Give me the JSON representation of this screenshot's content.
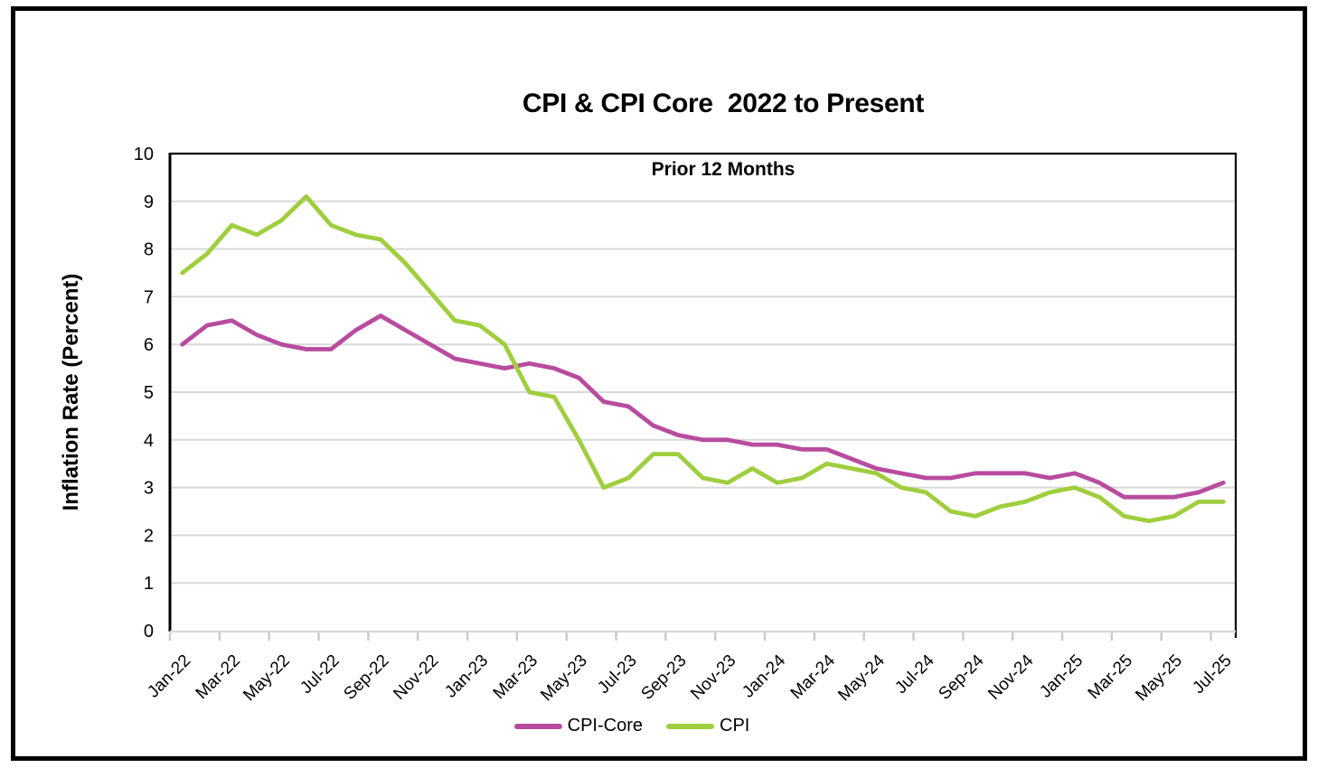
{
  "chart_data": {
    "type": "line",
    "title": "CPI & CPI Core  2022 to Present",
    "subtitle": "Prior 12 Months",
    "ylabel": "Inflation Rate (Percent)",
    "xlabel": "",
    "ylim": [
      0,
      10
    ],
    "y_ticks": [
      0,
      1,
      2,
      3,
      4,
      5,
      6,
      7,
      8,
      9,
      10
    ],
    "grid": true,
    "grid_color": "#D9D9D9",
    "axis_color": "#000000",
    "x_axis_line_color": "#D9D9D9",
    "legend_position": "bottom",
    "x_label_every": 2,
    "categories": [
      "Jan-22",
      "Feb-22",
      "Mar-22",
      "Apr-22",
      "May-22",
      "Jun-22",
      "Jul-22",
      "Aug-22",
      "Sep-22",
      "Oct-22",
      "Nov-22",
      "Dec-22",
      "Jan-23",
      "Feb-23",
      "Mar-23",
      "Apr-23",
      "May-23",
      "Jun-23",
      "Jul-23",
      "Aug-23",
      "Sep-23",
      "Oct-23",
      "Nov-23",
      "Dec-23",
      "Jan-24",
      "Feb-24",
      "Mar-24",
      "Apr-24",
      "May-24",
      "Jun-24",
      "Jul-24",
      "Aug-24",
      "Sep-24",
      "Oct-24",
      "Nov-24",
      "Dec-24",
      "Jan-25",
      "Feb-25",
      "Mar-25",
      "Apr-25",
      "May-25",
      "Jun-25",
      "Jul-25"
    ],
    "series": [
      {
        "name": "CPI-Core",
        "color": "#B84C9E",
        "values": [
          6.0,
          6.4,
          6.5,
          6.2,
          6.0,
          5.9,
          5.9,
          6.3,
          6.6,
          6.3,
          6.0,
          5.7,
          5.6,
          5.5,
          5.6,
          5.5,
          5.3,
          4.8,
          4.7,
          4.3,
          4.1,
          4.0,
          4.0,
          3.9,
          3.9,
          3.8,
          3.8,
          3.6,
          3.4,
          3.3,
          3.2,
          3.2,
          3.3,
          3.3,
          3.3,
          3.2,
          3.3,
          3.1,
          2.8,
          2.8,
          2.8,
          2.9,
          3.1
        ]
      },
      {
        "name": "CPI",
        "color": "#9FCE3E",
        "values": [
          7.5,
          7.9,
          8.5,
          8.3,
          8.6,
          9.1,
          8.5,
          8.3,
          8.2,
          7.7,
          7.1,
          6.5,
          6.4,
          6.0,
          5.0,
          4.9,
          4.0,
          3.0,
          3.2,
          3.7,
          3.7,
          3.2,
          3.1,
          3.4,
          3.1,
          3.2,
          3.5,
          3.4,
          3.3,
          3.0,
          2.9,
          2.5,
          2.4,
          2.6,
          2.7,
          2.9,
          3.0,
          2.8,
          2.4,
          2.3,
          2.4,
          2.7,
          2.7
        ]
      }
    ]
  }
}
